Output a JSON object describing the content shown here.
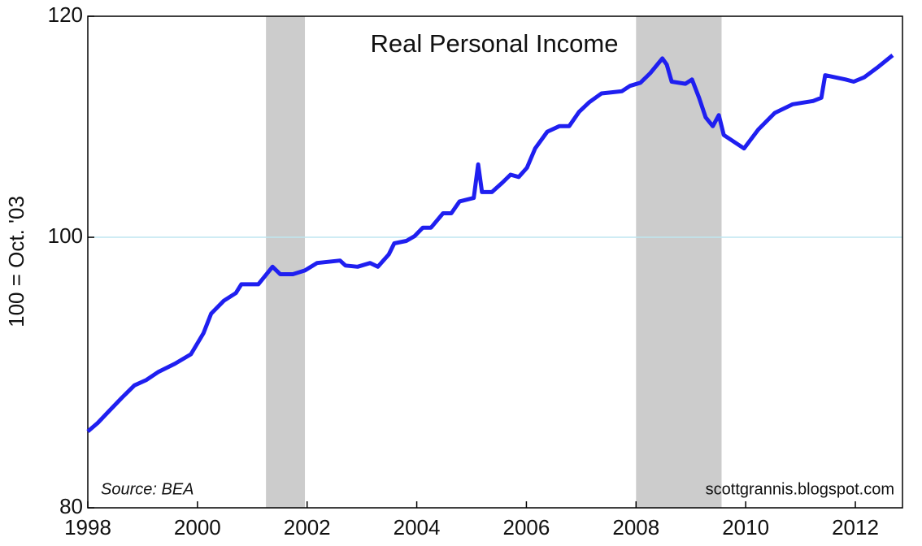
{
  "chart_data": {
    "type": "line",
    "title": "Real Personal Income",
    "y_label": "100 = Oct. '03",
    "source": "Source: BEA",
    "credit": "scottgrannis.blogspot.com",
    "log_scale_y": true,
    "xlim": [
      1998,
      2012.86
    ],
    "ylim": [
      80,
      120
    ],
    "xticks": [
      1998,
      2000,
      2002,
      2004,
      2006,
      2008,
      2010,
      2012
    ],
    "yticks": [
      80,
      100,
      120
    ],
    "grid_lines_y": [
      100
    ],
    "grid_color": "#bfe6f0",
    "shaded_periods": [
      [
        2001.25,
        2001.96
      ],
      [
        2008.0,
        2009.56
      ]
    ],
    "shade_color": "#cccccc",
    "series": [
      {
        "color": "#1f1ff0",
        "x": [
          1998.0,
          1998.18,
          1998.4,
          1998.62,
          1998.85,
          1999.07,
          1999.29,
          1999.59,
          1999.88,
          2000.11,
          2000.25,
          2000.48,
          2000.7,
          2000.8,
          2001.11,
          2001.37,
          2001.51,
          2001.74,
          2001.96,
          2002.18,
          2002.6,
          2002.7,
          2002.92,
          2003.15,
          2003.29,
          2003.49,
          2003.59,
          2003.81,
          2003.96,
          2004.11,
          2004.26,
          2004.48,
          2004.63,
          2004.78,
          2005.04,
          2005.12,
          2005.19,
          2005.37,
          2005.56,
          2005.71,
          2005.86,
          2006.01,
          2006.16,
          2006.38,
          2006.6,
          2006.78,
          2006.96,
          2007.15,
          2007.37,
          2007.74,
          2007.89,
          2008.08,
          2008.26,
          2008.48,
          2008.56,
          2008.65,
          2008.9,
          2009.02,
          2009.15,
          2009.27,
          2009.4,
          2009.51,
          2009.6,
          2009.97,
          2010.23,
          2010.53,
          2010.86,
          2011.23,
          2011.38,
          2011.45,
          2011.82,
          2011.97,
          2012.16,
          2012.42,
          2012.68
        ],
        "values": [
          85.2,
          85.8,
          86.7,
          87.6,
          88.5,
          88.9,
          89.5,
          90.1,
          90.8,
          92.4,
          93.9,
          94.9,
          95.5,
          96.2,
          96.2,
          97.6,
          97.0,
          97.0,
          97.3,
          97.9,
          98.1,
          97.7,
          97.6,
          97.9,
          97.6,
          98.6,
          99.5,
          99.7,
          100.1,
          100.8,
          100.8,
          102.0,
          102.0,
          103.0,
          103.3,
          106.2,
          103.8,
          103.8,
          104.6,
          105.3,
          105.1,
          105.9,
          107.6,
          109.1,
          109.6,
          109.6,
          110.9,
          111.8,
          112.6,
          112.8,
          113.3,
          113.6,
          114.5,
          115.9,
          115.3,
          113.7,
          113.5,
          113.9,
          112.2,
          110.4,
          109.6,
          110.6,
          108.8,
          107.6,
          109.3,
          110.8,
          111.6,
          111.9,
          112.2,
          114.3,
          113.9,
          113.7,
          114.1,
          115.1,
          116.2
        ]
      }
    ]
  }
}
